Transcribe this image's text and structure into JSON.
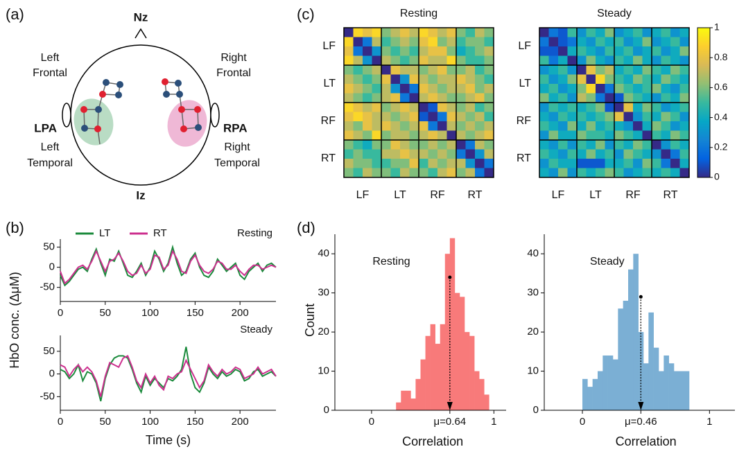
{
  "panel_labels": [
    "(a)",
    "(b)",
    "(c)",
    "(d)"
  ],
  "head_diagram": {
    "nasion": "Nz",
    "inion": "Iz",
    "left_ear": "LPA",
    "right_ear": "RPA",
    "regions": [
      [
        "Left",
        "Frontal"
      ],
      [
        "Right",
        "Frontal"
      ],
      [
        "Left",
        "Temporal"
      ],
      [
        "Right",
        "Temporal"
      ]
    ]
  },
  "chart_data": [
    {
      "type": "line",
      "annotation": "Resting",
      "ylabel": "HbO conc. (ΔμM)",
      "legend": true,
      "x": [
        0,
        5,
        10,
        15,
        20,
        25,
        30,
        35,
        40,
        45,
        50,
        55,
        60,
        65,
        70,
        75,
        80,
        85,
        90,
        95,
        100,
        105,
        110,
        115,
        120,
        125,
        130,
        135,
        140,
        145,
        150,
        155,
        160,
        165,
        170,
        175,
        180,
        185,
        190,
        195,
        200,
        205,
        210,
        215,
        220,
        225,
        230,
        235,
        240
      ],
      "series": [
        {
          "name": "LT",
          "color": "#1b8a3c",
          "values": [
            -20,
            -45,
            -35,
            -20,
            -5,
            0,
            -10,
            20,
            45,
            10,
            -20,
            20,
            15,
            40,
            10,
            -20,
            -25,
            -10,
            10,
            -20,
            0,
            40,
            20,
            -10,
            10,
            50,
            10,
            -20,
            -10,
            20,
            35,
            0,
            -20,
            -25,
            -10,
            20,
            5,
            -10,
            0,
            10,
            -20,
            -30,
            -10,
            0,
            10,
            -10,
            5,
            10,
            0
          ]
        },
        {
          "name": "RT",
          "color": "#cc2f8e",
          "values": [
            -10,
            -40,
            -30,
            -15,
            0,
            5,
            -5,
            15,
            40,
            15,
            -10,
            15,
            20,
            35,
            15,
            -10,
            -20,
            -15,
            5,
            -15,
            -5,
            30,
            25,
            -5,
            5,
            40,
            20,
            -10,
            -15,
            15,
            30,
            5,
            -10,
            -15,
            -5,
            15,
            10,
            -5,
            -5,
            5,
            -10,
            -20,
            -5,
            5,
            5,
            -5,
            0,
            5,
            0
          ]
        }
      ],
      "xlim": [
        0,
        240
      ],
      "xticks": [
        0,
        50,
        100,
        150,
        200
      ],
      "ylim": [
        -85,
        70
      ],
      "yticks": [
        -50,
        0,
        50
      ]
    },
    {
      "type": "line",
      "annotation": "Steady",
      "xlabel": "Time (s)",
      "x": [
        0,
        5,
        10,
        15,
        20,
        25,
        30,
        35,
        40,
        45,
        50,
        55,
        60,
        65,
        70,
        75,
        80,
        85,
        90,
        95,
        100,
        105,
        110,
        115,
        120,
        125,
        130,
        135,
        140,
        145,
        150,
        155,
        160,
        165,
        170,
        175,
        180,
        185,
        190,
        195,
        200,
        205,
        210,
        215,
        220,
        225,
        230,
        235,
        240
      ],
      "series": [
        {
          "name": "LT",
          "color": "#1b8a3c",
          "values": [
            10,
            5,
            -10,
            0,
            20,
            -15,
            5,
            0,
            -20,
            -60,
            -10,
            20,
            35,
            40,
            40,
            35,
            10,
            -20,
            -40,
            -5,
            -25,
            -10,
            -20,
            -30,
            -10,
            -15,
            -5,
            10,
            60,
            0,
            -30,
            -40,
            -20,
            15,
            0,
            -10,
            5,
            -5,
            0,
            10,
            5,
            -15,
            -10,
            5,
            10,
            -5,
            0,
            5,
            -5
          ]
        },
        {
          "name": "RT",
          "color": "#cc2f8e",
          "values": [
            20,
            15,
            -5,
            10,
            20,
            5,
            15,
            5,
            -15,
            -50,
            -5,
            25,
            20,
            15,
            35,
            40,
            15,
            -15,
            -30,
            0,
            -20,
            -5,
            -25,
            -35,
            -5,
            -10,
            0,
            5,
            30,
            10,
            -10,
            -30,
            -15,
            20,
            5,
            -5,
            10,
            0,
            5,
            15,
            10,
            -10,
            -5,
            0,
            15,
            0,
            5,
            10,
            -5
          ]
        }
      ],
      "xlim": [
        0,
        240
      ],
      "xticks": [
        0,
        50,
        100,
        150,
        200
      ],
      "ylim": [
        -80,
        85
      ],
      "yticks": [
        -50,
        0,
        50
      ]
    },
    {
      "type": "heatmap",
      "title": "Resting",
      "colormap": "parula",
      "clim": [
        0,
        1
      ],
      "row_labels": [
        "LF",
        "LT",
        "RF",
        "RT"
      ],
      "col_labels": [
        "LF",
        "LT",
        "RF",
        "RT"
      ],
      "values": [
        [
          0,
          0.9,
          0.8,
          0.9,
          0.6,
          0.7,
          0.8,
          0.7,
          0.9,
          0.8,
          0.7,
          0.8,
          0.6,
          0.5,
          0.7,
          0.6
        ],
        [
          0.9,
          0,
          0.2,
          0.7,
          0.5,
          0.6,
          0.7,
          0.6,
          0.8,
          0.9,
          0.6,
          0.7,
          0.5,
          0.6,
          0.6,
          0.5
        ],
        [
          0.8,
          0.2,
          0,
          0.3,
          0.6,
          0.5,
          0.6,
          0.5,
          0.7,
          0.8,
          0.8,
          0.6,
          0.4,
          0.5,
          0.6,
          0.7
        ],
        [
          0.9,
          0.7,
          0.3,
          0,
          0.7,
          0.6,
          0.5,
          0.6,
          0.8,
          0.7,
          0.7,
          0.9,
          0.6,
          0.5,
          0.5,
          0.6
        ],
        [
          0.6,
          0.5,
          0.6,
          0.7,
          0,
          0.8,
          0.7,
          0.7,
          0.6,
          0.7,
          0.8,
          0.6,
          0.6,
          0.7,
          0.5,
          0.6
        ],
        [
          0.7,
          0.6,
          0.5,
          0.6,
          0.8,
          0,
          0.3,
          0.8,
          0.7,
          0.6,
          0.7,
          0.7,
          0.8,
          0.7,
          0.6,
          0.5
        ],
        [
          0.8,
          0.7,
          0.6,
          0.5,
          0.7,
          0.3,
          0,
          0.2,
          0.8,
          0.7,
          0.6,
          0.7,
          0.7,
          0.8,
          0.6,
          0.7
        ],
        [
          0.7,
          0.6,
          0.5,
          0.6,
          0.7,
          0.8,
          0.2,
          0,
          0.7,
          0.8,
          0.7,
          0.6,
          0.6,
          0.7,
          0.8,
          0.6
        ],
        [
          0.9,
          0.8,
          0.7,
          0.8,
          0.6,
          0.7,
          0.8,
          0.7,
          0,
          0.1,
          0.8,
          0.7,
          0.6,
          0.7,
          0.5,
          0.6
        ],
        [
          0.8,
          0.9,
          0.8,
          0.7,
          0.7,
          0.6,
          0.7,
          0.8,
          0.1,
          0,
          0.2,
          0.8,
          0.7,
          0.6,
          0.7,
          0.5
        ],
        [
          0.7,
          0.6,
          0.8,
          0.7,
          0.8,
          0.7,
          0.6,
          0.7,
          0.8,
          0.2,
          0,
          0.7,
          0.6,
          0.7,
          0.6,
          0.7
        ],
        [
          0.8,
          0.7,
          0.6,
          0.9,
          0.6,
          0.7,
          0.7,
          0.6,
          0.7,
          0.8,
          0.7,
          0,
          0.7,
          0.6,
          0.7,
          0.8
        ],
        [
          0.6,
          0.5,
          0.4,
          0.6,
          0.6,
          0.8,
          0.7,
          0.6,
          0.6,
          0.7,
          0.6,
          0.7,
          0,
          0.2,
          0.7,
          0.6
        ],
        [
          0.5,
          0.6,
          0.5,
          0.5,
          0.7,
          0.7,
          0.8,
          0.7,
          0.7,
          0.6,
          0.7,
          0.6,
          0.2,
          0,
          0.3,
          0.7
        ],
        [
          0.7,
          0.6,
          0.6,
          0.5,
          0.5,
          0.6,
          0.6,
          0.8,
          0.5,
          0.7,
          0.6,
          0.7,
          0.7,
          0.3,
          0,
          0.2
        ],
        [
          0.6,
          0.5,
          0.7,
          0.6,
          0.6,
          0.5,
          0.7,
          0.6,
          0.6,
          0.5,
          0.7,
          0.8,
          0.6,
          0.7,
          0.2,
          0
        ]
      ]
    },
    {
      "type": "heatmap",
      "title": "Steady",
      "colormap": "parula",
      "clim": [
        0,
        1
      ],
      "row_labels": [
        "LF",
        "LT",
        "RF",
        "RT"
      ],
      "col_labels": [
        "LF",
        "LT",
        "RF",
        "RT"
      ],
      "colorbar": {
        "ticks": [
          0,
          0.2,
          0.4,
          0.6,
          0.8,
          1
        ]
      },
      "values": [
        [
          0,
          0.2,
          0.1,
          0.5,
          0.3,
          0.5,
          0.4,
          0.6,
          0.3,
          0.4,
          0.5,
          0.3,
          0.4,
          0.5,
          0.3,
          0.4
        ],
        [
          0.2,
          0,
          0.1,
          0.2,
          0.4,
          0.3,
          0.5,
          0.4,
          0.5,
          0.3,
          0.4,
          0.6,
          0.3,
          0.4,
          0.5,
          0.3
        ],
        [
          0.1,
          0.1,
          0,
          0.4,
          0.5,
          0.4,
          0.3,
          0.5,
          0.4,
          0.5,
          0.3,
          0.4,
          0.5,
          0.3,
          0.4,
          0.6
        ],
        [
          0.5,
          0.2,
          0.4,
          0,
          0.3,
          0.6,
          0.4,
          0.3,
          0.5,
          0.4,
          0.6,
          0.4,
          0.3,
          0.5,
          0.4,
          0.3
        ],
        [
          0.3,
          0.4,
          0.5,
          0.3,
          0,
          0.8,
          0.6,
          0.7,
          0.4,
          0.5,
          0.4,
          0.6,
          0.5,
          0.4,
          0.6,
          0.5
        ],
        [
          0.5,
          0.3,
          0.4,
          0.6,
          0.8,
          0,
          0.9,
          0.6,
          0.5,
          0.4,
          0.6,
          0.5,
          0.4,
          0.6,
          0.5,
          0.4
        ],
        [
          0.4,
          0.5,
          0.3,
          0.4,
          0.6,
          0.9,
          0,
          0.2,
          0.6,
          0.5,
          0.4,
          0.5,
          0.6,
          0.4,
          0.3,
          0.5
        ],
        [
          0.6,
          0.4,
          0.5,
          0.3,
          0.7,
          0.6,
          0.2,
          0,
          0.1,
          0.6,
          0.5,
          0.4,
          0.3,
          0.5,
          0.4,
          0.6
        ],
        [
          0.3,
          0.5,
          0.4,
          0.5,
          0.4,
          0.5,
          0.6,
          0.1,
          0,
          0.8,
          0.4,
          0.6,
          0.5,
          0.3,
          0.4,
          0.5
        ],
        [
          0.4,
          0.3,
          0.5,
          0.4,
          0.5,
          0.4,
          0.5,
          0.6,
          0.8,
          0,
          0.3,
          0.5,
          0.4,
          0.6,
          0.5,
          0.3
        ],
        [
          0.5,
          0.4,
          0.3,
          0.6,
          0.4,
          0.6,
          0.4,
          0.5,
          0.4,
          0.3,
          0,
          0.4,
          0.6,
          0.5,
          0.3,
          0.4
        ],
        [
          0.3,
          0.6,
          0.4,
          0.4,
          0.6,
          0.5,
          0.5,
          0.4,
          0.6,
          0.5,
          0.4,
          0,
          0.5,
          0.4,
          0.6,
          0.5
        ],
        [
          0.4,
          0.3,
          0.5,
          0.3,
          0.5,
          0.4,
          0.6,
          0.3,
          0.5,
          0.4,
          0.6,
          0.5,
          0,
          0.3,
          0.5,
          0.4
        ],
        [
          0.5,
          0.4,
          0.3,
          0.5,
          0.4,
          0.6,
          0.4,
          0.5,
          0.3,
          0.6,
          0.5,
          0.4,
          0.3,
          0,
          0.2,
          0.5
        ],
        [
          0.3,
          0.5,
          0.4,
          0.4,
          0.1,
          0.1,
          0.1,
          0.4,
          0.4,
          0.5,
          0.3,
          0.6,
          0.5,
          0.2,
          0,
          0.4
        ],
        [
          0.4,
          0.3,
          0.6,
          0.3,
          0.5,
          0.4,
          0.5,
          0.6,
          0.5,
          0.3,
          0.4,
          0.5,
          0.4,
          0.5,
          0.4,
          0
        ]
      ]
    },
    {
      "type": "histogram",
      "annotation": "Resting",
      "ylabel": "Count",
      "xlabel": "Correlation",
      "color": "#f87a7a",
      "bins": [
        0.2,
        0.24,
        0.28,
        0.32,
        0.36,
        0.4,
        0.44,
        0.48,
        0.52,
        0.56,
        0.6,
        0.64,
        0.68,
        0.72,
        0.76,
        0.8,
        0.84,
        0.88,
        0.92,
        0.96
      ],
      "values": [
        2,
        5,
        5,
        3,
        8,
        13,
        19,
        22,
        17,
        22,
        40,
        44,
        30,
        29,
        20,
        19,
        10,
        8,
        4
      ],
      "mean": {
        "value": 0.64,
        "label": "μ=0.64",
        "marker_top": 34
      },
      "xlim": [
        -0.3,
        1.1
      ],
      "xticks": [
        0,
        1
      ],
      "ylim": [
        0,
        45
      ],
      "yticks": [
        0,
        10,
        20,
        30,
        40
      ]
    },
    {
      "type": "histogram",
      "annotation": "Steady",
      "xlabel": "Correlation",
      "color": "#7bafd4",
      "bins": [
        0,
        0.04,
        0.08,
        0.12,
        0.16,
        0.2,
        0.24,
        0.28,
        0.32,
        0.36,
        0.4,
        0.44,
        0.48,
        0.52,
        0.56,
        0.6,
        0.64,
        0.68,
        0.72,
        0.76,
        0.8,
        0.84
      ],
      "values": [
        8,
        6,
        8,
        10,
        14,
        14,
        13,
        26,
        28,
        36,
        40,
        20,
        12,
        25,
        16,
        10,
        14,
        12,
        10,
        10,
        10
      ],
      "mean": {
        "value": 0.46,
        "label": "μ=0.46",
        "marker_top": 29
      },
      "xlim": [
        -0.3,
        1.2
      ],
      "xticks": [
        0,
        1
      ],
      "ylim": [
        0,
        45
      ],
      "yticks": [
        0,
        10,
        20,
        30,
        40
      ]
    }
  ]
}
